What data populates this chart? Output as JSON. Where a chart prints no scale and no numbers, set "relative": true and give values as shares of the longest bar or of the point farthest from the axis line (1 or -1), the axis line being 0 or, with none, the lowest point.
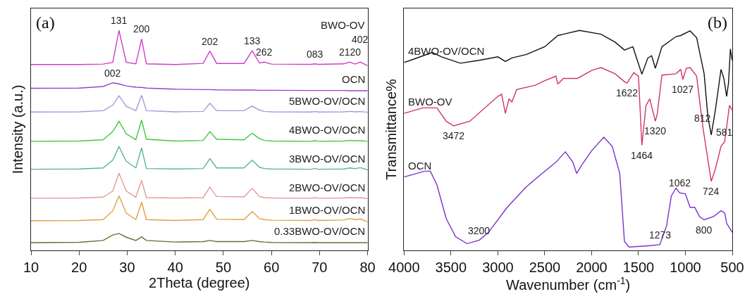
{
  "chart_data": [
    {
      "type": "line",
      "title": "(a)",
      "xlabel": "2Theta (degree)",
      "ylabel": "Intensity (a.u.)",
      "relative": true,
      "xlim": [
        10,
        80
      ],
      "xticks": [
        10,
        20,
        30,
        40,
        50,
        60,
        70,
        80
      ],
      "x": [
        10,
        20,
        25,
        27,
        28.3,
        29.8,
        31.8,
        33,
        34,
        40,
        45.8,
        47.2,
        48.6,
        54.3,
        56,
        57.5,
        58.5,
        60,
        68.3,
        69,
        69.7,
        75,
        76.3,
        77.4,
        78.5,
        80
      ],
      "series": [
        {
          "name": "BWO-OV",
          "color": "#cc3fc6",
          "values": [
            0.845,
            0.845,
            0.847,
            0.855,
            1.0,
            0.855,
            0.848,
            0.961,
            0.848,
            0.845,
            0.85,
            0.906,
            0.85,
            0.85,
            0.908,
            0.852,
            0.856,
            0.847,
            0.846,
            0.848,
            0.846,
            0.848,
            0.856,
            0.847,
            0.856,
            0.84
          ]
        },
        {
          "name": "OCN",
          "color": "#9a3fcc",
          "values": [
            0.737,
            0.738,
            0.745,
            0.762,
            0.757,
            0.748,
            0.742,
            0.741,
            0.738,
            0.733,
            0.731,
            0.731,
            0.73,
            0.729,
            0.729,
            0.728,
            0.728,
            0.728,
            0.727,
            0.727,
            0.727,
            0.727,
            0.726,
            0.726,
            0.726,
            0.726
          ]
        },
        {
          "name": "5BWO-OV/OCN",
          "color": "#9c9ce0",
          "values": [
            0.629,
            0.63,
            0.635,
            0.66,
            0.703,
            0.655,
            0.635,
            0.705,
            0.635,
            0.63,
            0.632,
            0.669,
            0.635,
            0.635,
            0.656,
            0.638,
            0.632,
            0.63,
            0.629,
            0.631,
            0.629,
            0.63,
            0.632,
            0.63,
            0.631,
            0.628
          ]
        },
        {
          "name": "4BWO-OV/OCN",
          "color": "#3ec93e",
          "values": [
            0.496,
            0.497,
            0.503,
            0.54,
            0.587,
            0.53,
            0.503,
            0.593,
            0.505,
            0.497,
            0.5,
            0.54,
            0.505,
            0.503,
            0.533,
            0.508,
            0.5,
            0.497,
            0.496,
            0.499,
            0.496,
            0.497,
            0.5,
            0.499,
            0.499,
            0.496
          ]
        },
        {
          "name": "3BWO-OV/OCN",
          "color": "#5ab3a3",
          "values": [
            0.369,
            0.37,
            0.375,
            0.41,
            0.472,
            0.405,
            0.375,
            0.466,
            0.372,
            0.37,
            0.372,
            0.417,
            0.375,
            0.375,
            0.41,
            0.378,
            0.372,
            0.37,
            0.369,
            0.373,
            0.369,
            0.37,
            0.375,
            0.372,
            0.376,
            0.366
          ]
        },
        {
          "name": "2BWO-OV/OCN",
          "color": "#e59a9a",
          "values": [
            0.237,
            0.238,
            0.242,
            0.27,
            0.351,
            0.27,
            0.242,
            0.319,
            0.24,
            0.238,
            0.24,
            0.288,
            0.245,
            0.243,
            0.282,
            0.245,
            0.24,
            0.238,
            0.237,
            0.24,
            0.237,
            0.238,
            0.24,
            0.238,
            0.24,
            0.235
          ]
        },
        {
          "name": "1BWO-OV/OCN",
          "color": "#e0a040",
          "values": [
            0.135,
            0.136,
            0.14,
            0.18,
            0.248,
            0.17,
            0.14,
            0.219,
            0.14,
            0.136,
            0.14,
            0.187,
            0.142,
            0.14,
            0.177,
            0.145,
            0.14,
            0.137,
            0.136,
            0.14,
            0.136,
            0.138,
            0.145,
            0.14,
            0.143,
            0.13
          ]
        },
        {
          "name": "0.33BWO-OV/OCN",
          "color": "#6e6e32",
          "values": [
            0.035,
            0.037,
            0.045,
            0.07,
            0.077,
            0.06,
            0.045,
            0.061,
            0.045,
            0.038,
            0.04,
            0.045,
            0.04,
            0.04,
            0.045,
            0.04,
            0.038,
            0.036,
            0.035,
            0.036,
            0.035,
            0.035,
            0.035,
            0.035,
            0.035,
            0.035
          ]
        }
      ],
      "annotations": [
        {
          "text": "131",
          "x": 28.3,
          "y": 1.0
        },
        {
          "text": "200",
          "x": 33,
          "y": 0.961
        },
        {
          "text": "202",
          "x": 47.2,
          "y": 0.906
        },
        {
          "text": "133",
          "x": 56,
          "y": 0.908
        },
        {
          "text": "262",
          "x": 58.5,
          "y": 0.856
        },
        {
          "text": "083",
          "x": 69,
          "y": 0.848
        },
        {
          "text": "2120",
          "x": 76.3,
          "y": 0.856
        },
        {
          "text": "402",
          "x": 78.5,
          "y": 0.856
        },
        {
          "text": "002",
          "x": 27,
          "y": 0.762
        }
      ]
    },
    {
      "type": "line",
      "title": "(b)",
      "xlabel": "Wavenumber (cm$^{-1}$)",
      "ylabel": "Transmittance%",
      "relative": true,
      "xlim": [
        4000,
        500
      ],
      "xticks": [
        4000,
        3500,
        3000,
        2500,
        2000,
        1500,
        1000,
        500
      ],
      "series": [
        {
          "name": "4BWO-OV/OCN",
          "color": "#111111",
          "x": [
            4000,
            3900,
            3700,
            3600,
            3400,
            3200,
            3000,
            2920,
            2850,
            2700,
            2500,
            2360,
            2300,
            2130,
            1900,
            1750,
            1650,
            1560,
            1464,
            1400,
            1360,
            1320,
            1250,
            1100,
            1050,
            950,
            880,
            800,
            760,
            724,
            680,
            620,
            590,
            560,
            540,
            520,
            500
          ],
          "values": [
            0.854,
            0.869,
            0.9,
            0.88,
            0.851,
            0.864,
            0.88,
            0.859,
            0.875,
            0.89,
            0.926,
            0.977,
            0.983,
            1.0,
            0.983,
            0.947,
            0.911,
            0.926,
            0.801,
            0.875,
            0.885,
            0.828,
            0.926,
            0.972,
            0.977,
            0.998,
            0.967,
            0.803,
            0.607,
            0.525,
            0.638,
            0.823,
            0.782,
            0.7,
            0.761,
            0.916,
            0.864
          ]
        },
        {
          "name": "BWO-OV",
          "color": "#d0326e",
          "x": [
            4000,
            3800,
            3650,
            3550,
            3472,
            3300,
            3000,
            2960,
            2920,
            2880,
            2850,
            2800,
            2600,
            2500,
            2380,
            2360,
            2300,
            2150,
            2000,
            1900,
            1750,
            1650,
            1622,
            1550,
            1500,
            1464,
            1420,
            1380,
            1320,
            1300,
            1250,
            1100,
            1050,
            1027,
            990,
            950,
            880,
            812,
            724,
            680,
            620,
            581,
            530,
            500
          ],
          "values": [
            0.623,
            0.648,
            0.648,
            0.587,
            0.566,
            0.587,
            0.7,
            0.71,
            0.623,
            0.689,
            0.674,
            0.731,
            0.751,
            0.772,
            0.792,
            0.756,
            0.782,
            0.782,
            0.818,
            0.831,
            0.803,
            0.767,
            0.761,
            0.808,
            0.792,
            0.478,
            0.659,
            0.689,
            0.587,
            0.62,
            0.797,
            0.803,
            0.823,
            0.777,
            0.828,
            0.831,
            0.792,
            0.556,
            0.314,
            0.37,
            0.473,
            0.494,
            0.659,
            0.638
          ]
        },
        {
          "name": "OCN",
          "color": "#7b2fd0",
          "x": [
            4000,
            3780,
            3720,
            3650,
            3550,
            3450,
            3330,
            3200,
            3100,
            2900,
            2700,
            2500,
            2380,
            2280,
            2200,
            2160,
            2100,
            2000,
            1870,
            1780,
            1700,
            1650,
            1600,
            1400,
            1273,
            1200,
            1150,
            1100,
            1062,
            1000,
            950,
            900,
            850,
            800,
            700,
            620,
            580,
            560,
            530,
            500
          ],
          "values": [
            0.334,
            0.36,
            0.36,
            0.298,
            0.144,
            0.062,
            0.031,
            0.046,
            0.082,
            0.196,
            0.288,
            0.36,
            0.401,
            0.448,
            0.401,
            0.35,
            0.391,
            0.453,
            0.515,
            0.473,
            0.35,
            0.041,
            0.015,
            0.021,
            0.026,
            0.113,
            0.247,
            0.283,
            0.262,
            0.257,
            0.196,
            0.196,
            0.154,
            0.139,
            0.154,
            0.18,
            0.17,
            0.123,
            0.103,
            0.082
          ]
        }
      ],
      "annotations": [
        {
          "text": "3472",
          "x": 3472,
          "y": 0.566
        },
        {
          "text": "1622",
          "x": 1622,
          "y": 0.761
        },
        {
          "text": "1027",
          "x": 1027,
          "y": 0.777
        },
        {
          "text": "1320",
          "x": 1320,
          "y": 0.587
        },
        {
          "text": "1464",
          "x": 1464,
          "y": 0.478
        },
        {
          "text": "812",
          "x": 812,
          "y": 0.556
        },
        {
          "text": "724",
          "x": 724,
          "y": 0.314
        },
        {
          "text": "581",
          "x": 581,
          "y": 0.494
        },
        {
          "text": "1062",
          "x": 1062,
          "y": 0.262
        },
        {
          "text": "3200",
          "x": 3200,
          "y": 0.046
        },
        {
          "text": "1273",
          "x": 1273,
          "y": 0.026
        },
        {
          "text": "800",
          "x": 800,
          "y": 0.139
        }
      ]
    }
  ]
}
